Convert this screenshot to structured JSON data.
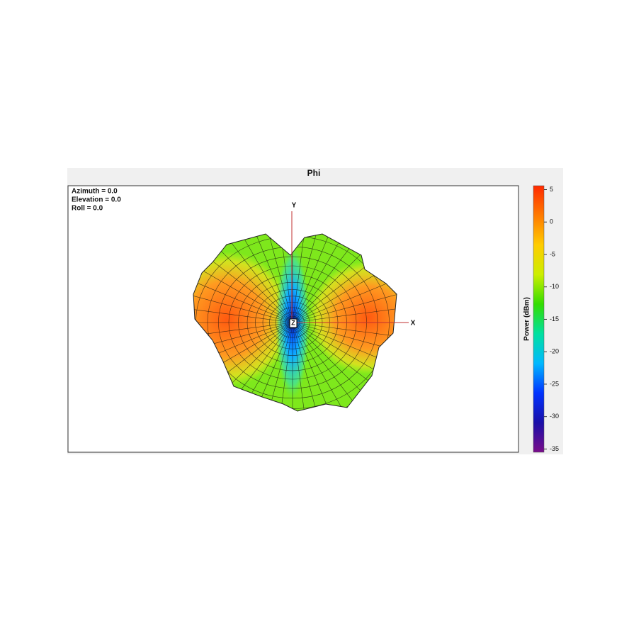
{
  "chart_data": {
    "type": "surface3d",
    "title": "Phi",
    "view": [
      "Azimuth = 0.0",
      "Elevation = 0.0",
      "Roll = 0.0"
    ],
    "axis_labels": {
      "x": "X",
      "y": "Y",
      "z": "Z"
    },
    "colorbar": {
      "label": "Power  (dBm)",
      "lim": [
        -35.5,
        5.6
      ],
      "ticks": [
        5,
        0,
        -5,
        -10,
        -15,
        -20,
        -25,
        -30,
        -35
      ],
      "colormap": [
        "#7a0d8a",
        "#1a0fa8",
        "#0033ff",
        "#00b8ff",
        "#00e0a0",
        "#33dd00",
        "#ccee00",
        "#ffcc00",
        "#ff7a00",
        "#ff2a00"
      ]
    }
  }
}
